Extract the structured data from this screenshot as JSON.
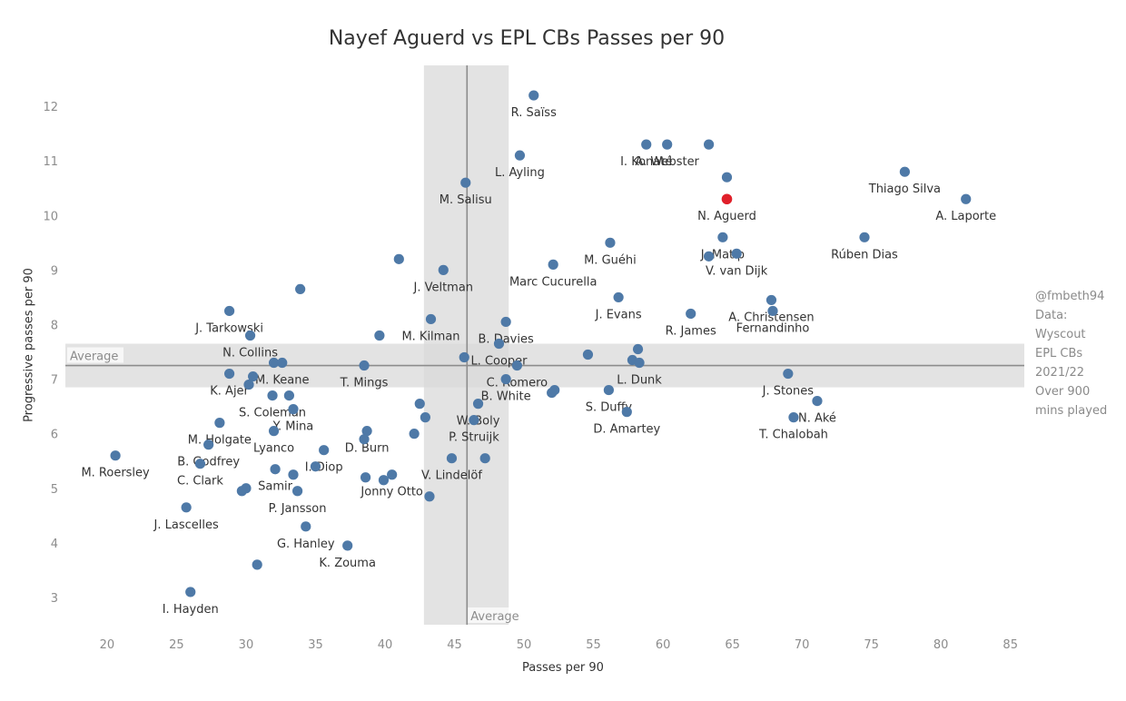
{
  "chart_data": {
    "type": "scatter",
    "title": "Nayef Aguerd vs EPL CBs Passes per 90",
    "xlabel": "Passes per 90",
    "ylabel": "Progressive passes per 90",
    "xlim": [
      17,
      86
    ],
    "ylim": [
      2.5,
      12.75
    ],
    "xticks": [
      "20",
      "25",
      "30",
      "35",
      "40",
      "45",
      "50",
      "55",
      "60",
      "65",
      "70",
      "75",
      "80",
      "85"
    ],
    "yticks": [
      "3",
      "4",
      "5",
      "6",
      "7",
      "8",
      "9",
      "10",
      "11",
      "12"
    ],
    "grid": false,
    "reference_bands": {
      "x_average": 45.9,
      "x_band": [
        42.8,
        48.9
      ],
      "x_label": "Average",
      "y_average": 7.25,
      "y_band": [
        6.85,
        7.65
      ],
      "y_label": "Average"
    },
    "colors": {
      "point": "#4e79a7",
      "highlight": "#e0202a",
      "band": "#d9d9d9",
      "line": "#8c8c8c",
      "text": "#333333",
      "axis_text": "#8c8c8c"
    },
    "points": [
      {
        "x": 50.7,
        "y": 12.2,
        "label": "R. Saïss"
      },
      {
        "x": 49.7,
        "y": 11.1,
        "label": "L. Ayling"
      },
      {
        "x": 45.8,
        "y": 10.6,
        "label": "M. Salisu"
      },
      {
        "x": 58.8,
        "y": 11.3,
        "label": "I. Konaté"
      },
      {
        "x": 60.3,
        "y": 11.3,
        "label": "A. Webster"
      },
      {
        "x": 63.3,
        "y": 11.3,
        "label": ""
      },
      {
        "x": 64.6,
        "y": 10.7,
        "label": ""
      },
      {
        "x": 64.6,
        "y": 10.3,
        "label": "N. Aguerd",
        "highlight": true
      },
      {
        "x": 77.4,
        "y": 10.8,
        "label": "Thiago Silva"
      },
      {
        "x": 81.8,
        "y": 10.3,
        "label": "A. Laporte"
      },
      {
        "x": 74.5,
        "y": 9.6,
        "label": "Rúben Dias"
      },
      {
        "x": 64.3,
        "y": 9.6,
        "label": "J. Matip"
      },
      {
        "x": 65.3,
        "y": 9.3,
        "label": "V. van Dijk"
      },
      {
        "x": 63.3,
        "y": 9.25,
        "label": ""
      },
      {
        "x": 56.2,
        "y": 9.5,
        "label": "M. Guéhi"
      },
      {
        "x": 52.1,
        "y": 9.1,
        "label": "Marc Cucurella"
      },
      {
        "x": 44.2,
        "y": 9.0,
        "label": "J. Veltman"
      },
      {
        "x": 41.0,
        "y": 9.2,
        "label": ""
      },
      {
        "x": 33.9,
        "y": 8.65,
        "label": ""
      },
      {
        "x": 28.8,
        "y": 8.25,
        "label": "J. Tarkowski"
      },
      {
        "x": 30.3,
        "y": 7.8,
        "label": "N. Collins"
      },
      {
        "x": 39.6,
        "y": 7.8,
        "label": ""
      },
      {
        "x": 43.3,
        "y": 8.1,
        "label": "M. Kilman"
      },
      {
        "x": 48.7,
        "y": 8.05,
        "label": "B. Davies"
      },
      {
        "x": 56.8,
        "y": 8.5,
        "label": "J. Evans"
      },
      {
        "x": 62.0,
        "y": 8.2,
        "label": "R. James"
      },
      {
        "x": 67.8,
        "y": 8.45,
        "label": "A. Christensen"
      },
      {
        "x": 67.9,
        "y": 8.25,
        "label": "Fernandinho"
      },
      {
        "x": 48.2,
        "y": 7.65,
        "label": "L. Cooper"
      },
      {
        "x": 45.7,
        "y": 7.4,
        "label": ""
      },
      {
        "x": 54.6,
        "y": 7.45,
        "label": ""
      },
      {
        "x": 58.2,
        "y": 7.55,
        "label": ""
      },
      {
        "x": 57.8,
        "y": 7.35,
        "label": ""
      },
      {
        "x": 58.3,
        "y": 7.3,
        "label": "L. Dunk"
      },
      {
        "x": 49.5,
        "y": 7.25,
        "label": "C. Romero"
      },
      {
        "x": 38.5,
        "y": 7.25,
        "label": "T. Mings"
      },
      {
        "x": 32.0,
        "y": 7.3,
        "label": ""
      },
      {
        "x": 32.6,
        "y": 7.3,
        "label": "M. Keane"
      },
      {
        "x": 28.8,
        "y": 7.1,
        "label": "K. Ajer"
      },
      {
        "x": 30.5,
        "y": 7.05,
        "label": ""
      },
      {
        "x": 30.2,
        "y": 6.9,
        "label": ""
      },
      {
        "x": 48.7,
        "y": 7.0,
        "label": "B. White"
      },
      {
        "x": 69.0,
        "y": 7.1,
        "label": "J. Stones"
      },
      {
        "x": 52.0,
        "y": 6.75,
        "label": ""
      },
      {
        "x": 52.2,
        "y": 6.8,
        "label": ""
      },
      {
        "x": 56.1,
        "y": 6.8,
        "label": "S. Duffy"
      },
      {
        "x": 71.1,
        "y": 6.6,
        "label": "N. Aké"
      },
      {
        "x": 69.4,
        "y": 6.3,
        "label": "T. Chalobah"
      },
      {
        "x": 57.4,
        "y": 6.4,
        "label": "D. Amartey"
      },
      {
        "x": 46.7,
        "y": 6.55,
        "label": "W. Boly"
      },
      {
        "x": 31.9,
        "y": 6.7,
        "label": "S. Coleman"
      },
      {
        "x": 33.1,
        "y": 6.7,
        "label": ""
      },
      {
        "x": 33.4,
        "y": 6.45,
        "label": "Y. Mina"
      },
      {
        "x": 42.5,
        "y": 6.55,
        "label": ""
      },
      {
        "x": 42.9,
        "y": 6.3,
        "label": ""
      },
      {
        "x": 46.4,
        "y": 6.25,
        "label": "P. Struijk"
      },
      {
        "x": 28.1,
        "y": 6.2,
        "label": "M. Holgate"
      },
      {
        "x": 32.0,
        "y": 6.05,
        "label": "Lyanco"
      },
      {
        "x": 38.7,
        "y": 6.05,
        "label": "D. Burn"
      },
      {
        "x": 38.5,
        "y": 5.9,
        "label": ""
      },
      {
        "x": 42.1,
        "y": 6.0,
        "label": ""
      },
      {
        "x": 27.3,
        "y": 5.8,
        "label": "B. Godfrey"
      },
      {
        "x": 35.6,
        "y": 5.7,
        "label": "I. Diop"
      },
      {
        "x": 20.6,
        "y": 5.6,
        "label": "M. Roersley"
      },
      {
        "x": 26.7,
        "y": 5.45,
        "label": "C. Clark"
      },
      {
        "x": 32.1,
        "y": 5.35,
        "label": "Samir"
      },
      {
        "x": 33.4,
        "y": 5.25,
        "label": ""
      },
      {
        "x": 35.0,
        "y": 5.4,
        "label": ""
      },
      {
        "x": 44.8,
        "y": 5.55,
        "label": "V. Lindelöf"
      },
      {
        "x": 47.2,
        "y": 5.55,
        "label": ""
      },
      {
        "x": 38.6,
        "y": 5.2,
        "label": ""
      },
      {
        "x": 39.9,
        "y": 5.15,
        "label": ""
      },
      {
        "x": 40.5,
        "y": 5.25,
        "label": "Jonny Otto"
      },
      {
        "x": 30.0,
        "y": 5.0,
        "label": ""
      },
      {
        "x": 29.7,
        "y": 4.95,
        "label": ""
      },
      {
        "x": 33.7,
        "y": 4.95,
        "label": "P. Jansson"
      },
      {
        "x": 43.2,
        "y": 4.85,
        "label": ""
      },
      {
        "x": 25.7,
        "y": 4.65,
        "label": "J. Lascelles"
      },
      {
        "x": 34.3,
        "y": 4.3,
        "label": "G. Hanley"
      },
      {
        "x": 37.3,
        "y": 3.95,
        "label": "K. Zouma"
      },
      {
        "x": 30.8,
        "y": 3.6,
        "label": ""
      },
      {
        "x": 26.0,
        "y": 3.1,
        "label": "I. Hayden"
      }
    ]
  },
  "credit_lines": [
    "@fmbeth94",
    "Data:",
    "Wyscout",
    "EPL CBs",
    "2021/22",
    "Over 900",
    "mins played"
  ]
}
